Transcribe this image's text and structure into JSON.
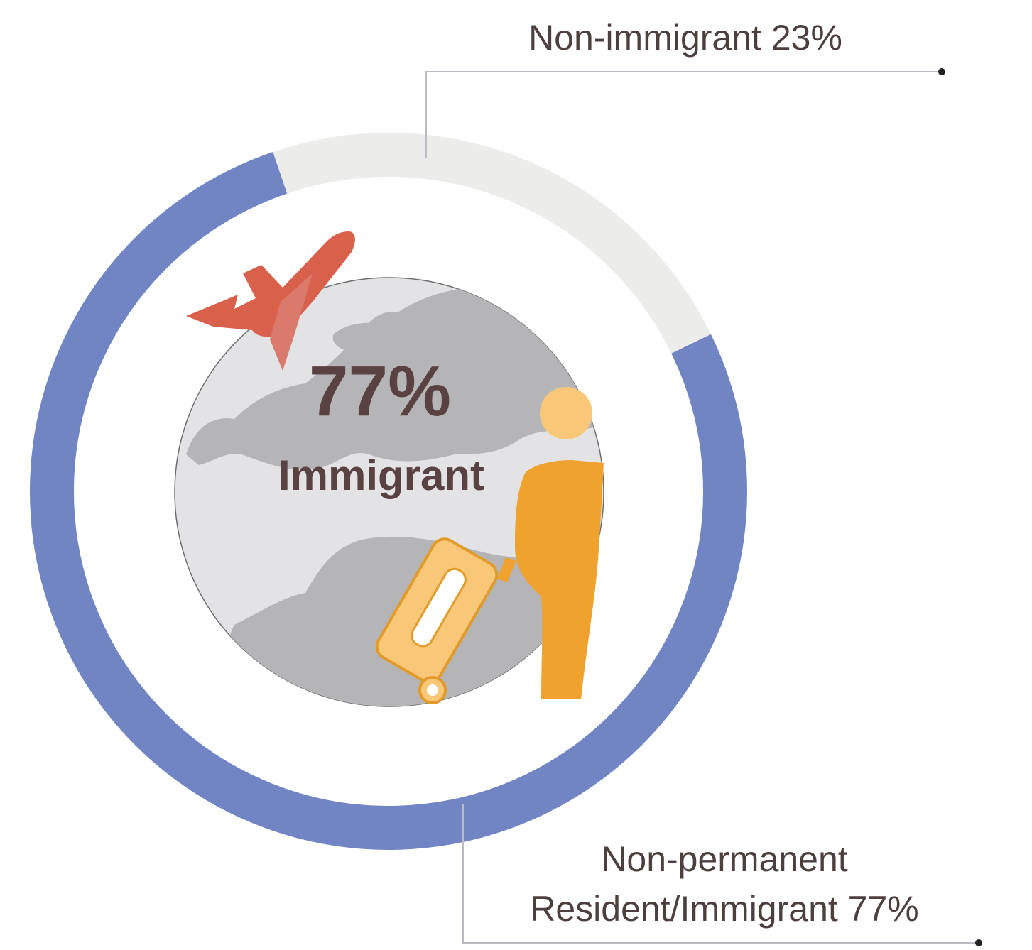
{
  "chart_data": {
    "type": "pie",
    "variant": "donut",
    "slices": [
      {
        "label_lines": [
          "Non-permanent",
          "Resident/Immigrant 77%"
        ],
        "value": 77,
        "color": "#7184c4"
      },
      {
        "label_lines": [
          "Non-immigrant 23%"
        ],
        "value": 23,
        "color": "#ececea"
      }
    ],
    "center": {
      "value_text": "77%",
      "label": "Immigrant"
    },
    "icons": [
      "globe-icon",
      "airplane-icon",
      "traveler-icon",
      "suitcase-icon"
    ],
    "colors": {
      "text": "#4e3f3f",
      "center_text": "#5a4242",
      "globe_ocean": "#e3e3e5",
      "globe_land": "#b5b5b7",
      "plane": "#d9604b",
      "person": "#f0a22f",
      "head": "#f8c778"
    }
  }
}
